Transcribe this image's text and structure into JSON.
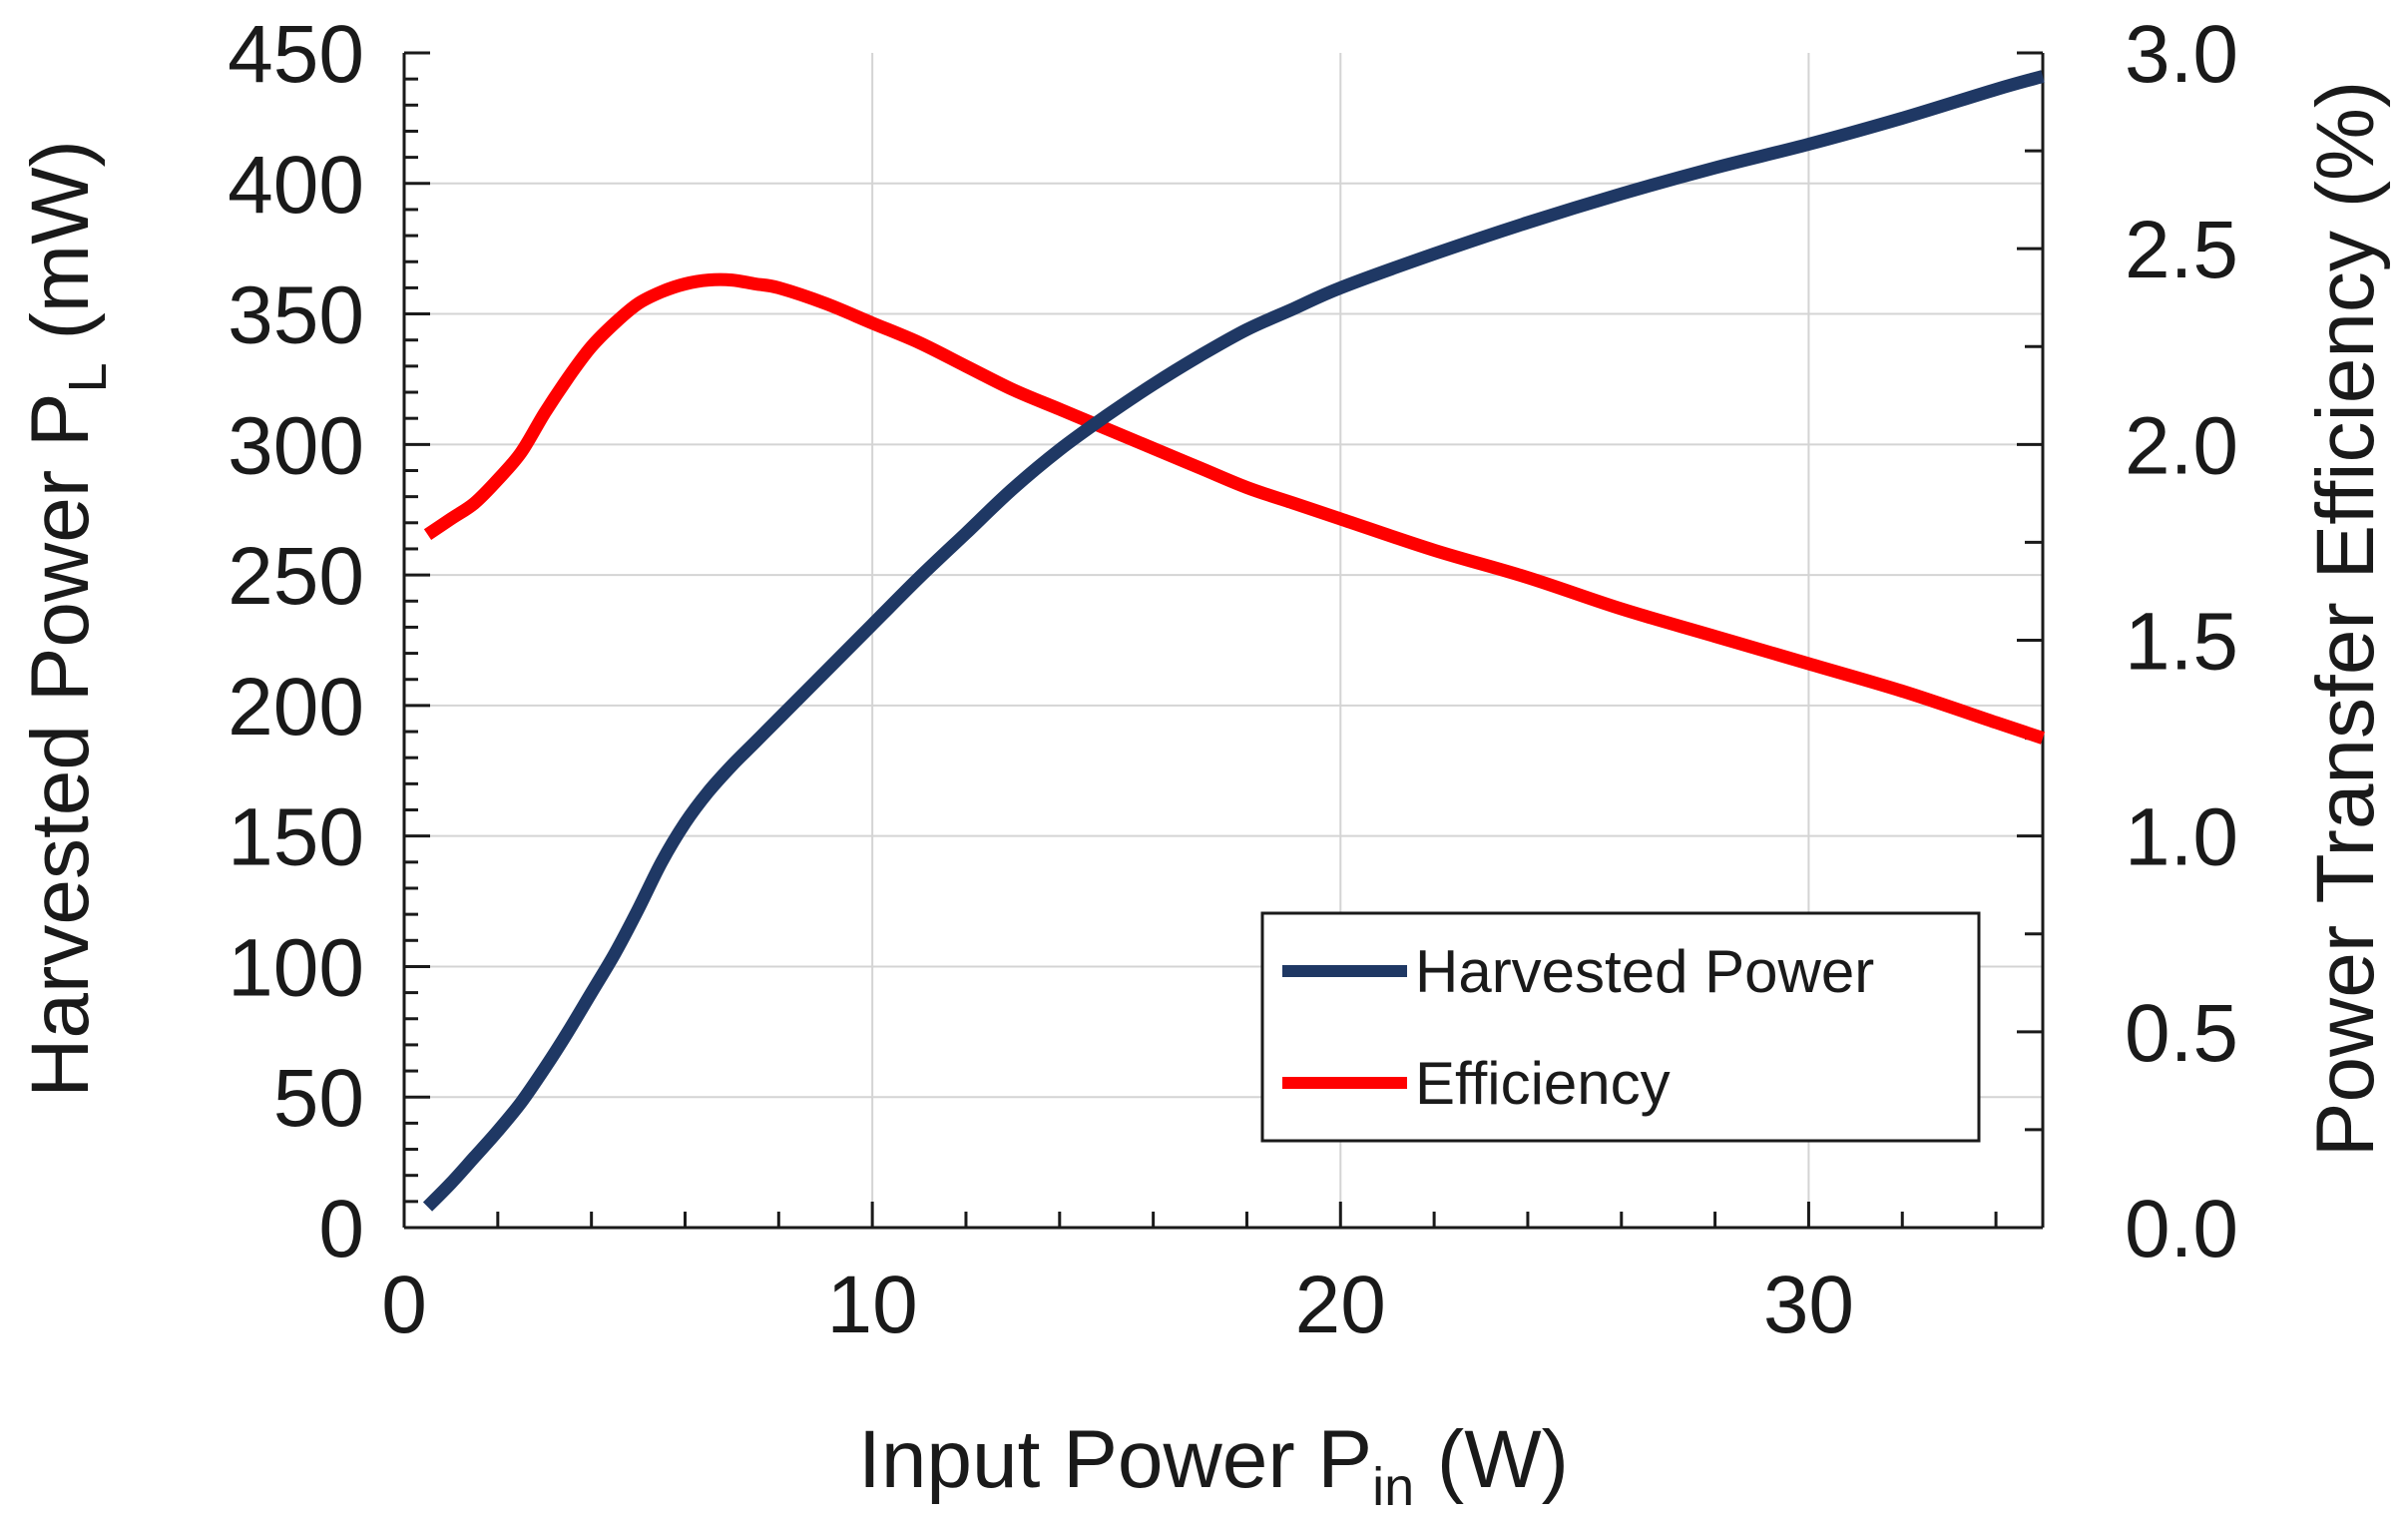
{
  "chart_data": {
    "type": "line",
    "title": "",
    "x": [
      0.5,
      1,
      1.5,
      2,
      2.5,
      3,
      3.5,
      4,
      4.5,
      5,
      5.5,
      6,
      6.5,
      7,
      7.5,
      8,
      9,
      10,
      11,
      12,
      13,
      14,
      15,
      16,
      17,
      18,
      19,
      20,
      22,
      24,
      26,
      28,
      30,
      32,
      34,
      35
    ],
    "xlabel": "Input Power P",
    "xlabel_sub": "in",
    "xlabel_unit": " (W)",
    "xlim": [
      0,
      35
    ],
    "xticks": [
      0,
      10,
      20,
      30
    ],
    "ylabel_left": "Harvested Power P",
    "ylabel_left_sub": "L",
    "ylabel_left_unit": " (mW)",
    "ylim_left": [
      0,
      450
    ],
    "yticks_left": [
      "0",
      "50",
      "100",
      "150",
      "200",
      "250",
      "300",
      "350",
      "400",
      "450"
    ],
    "ylabel_right": "Power Transfer Efficiency (%)",
    "ylim_right": [
      0,
      3.0
    ],
    "yticks_right": [
      "0.0",
      "0.5",
      "1.0",
      "1.5",
      "2.0",
      "2.5",
      "3.0"
    ],
    "grid": true,
    "legend_position": "bottom-right",
    "series": [
      {
        "name": "Harvested Power",
        "axis": "left",
        "color": "#1f3864",
        "values": [
          8,
          17,
          27,
          37,
          48,
          61,
          75,
          90,
          105,
          122,
          140,
          155,
          167,
          177,
          186,
          195,
          213,
          231,
          249,
          266,
          283,
          298,
          311,
          323,
          334,
          344,
          352,
          360,
          373,
          385,
          396,
          406,
          415,
          425,
          436,
          441
        ]
      },
      {
        "name": "Efficiency",
        "axis": "right",
        "color": "#ff0000",
        "values": [
          1.77,
          1.81,
          1.85,
          1.91,
          1.98,
          2.08,
          2.17,
          2.25,
          2.31,
          2.36,
          2.39,
          2.41,
          2.42,
          2.42,
          2.41,
          2.4,
          2.36,
          2.31,
          2.26,
          2.2,
          2.14,
          2.09,
          2.04,
          1.99,
          1.94,
          1.89,
          1.85,
          1.81,
          1.73,
          1.66,
          1.58,
          1.51,
          1.44,
          1.37,
          1.29,
          1.25
        ]
      }
    ]
  }
}
